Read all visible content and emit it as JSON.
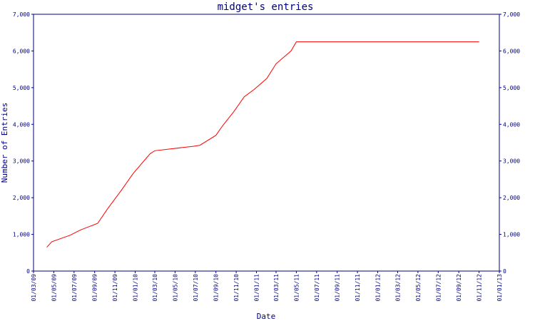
{
  "chart_data": {
    "type": "line",
    "title": "midget's entries",
    "xlabel": "Date",
    "ylabel": "Number of Entries",
    "ylim": [
      0,
      7000
    ],
    "xlim": [
      "2009-03-01",
      "2013-01-01"
    ],
    "grid": false,
    "colors": {
      "frame": "#000080",
      "text": "#000080",
      "series": "#ff0000"
    },
    "y_ticks": [
      {
        "value": 0,
        "label": "0"
      },
      {
        "value": 1000,
        "label": "1,000"
      },
      {
        "value": 2000,
        "label": "2,000"
      },
      {
        "value": 3000,
        "label": "3,000"
      },
      {
        "value": 4000,
        "label": "4,000"
      },
      {
        "value": 5000,
        "label": "5,000"
      },
      {
        "value": 6000,
        "label": "6,000"
      },
      {
        "value": 7000,
        "label": "7,000"
      }
    ],
    "x_ticks": [
      {
        "date": "2009-03-01",
        "label": "01/03/09"
      },
      {
        "date": "2009-05-01",
        "label": "01/05/09"
      },
      {
        "date": "2009-07-01",
        "label": "01/07/09"
      },
      {
        "date": "2009-09-01",
        "label": "01/09/09"
      },
      {
        "date": "2009-11-01",
        "label": "01/11/09"
      },
      {
        "date": "2010-01-01",
        "label": "01/01/10"
      },
      {
        "date": "2010-03-01",
        "label": "01/03/10"
      },
      {
        "date": "2010-05-01",
        "label": "01/05/10"
      },
      {
        "date": "2010-07-01",
        "label": "01/07/10"
      },
      {
        "date": "2010-09-01",
        "label": "01/09/10"
      },
      {
        "date": "2010-11-01",
        "label": "01/11/10"
      },
      {
        "date": "2011-01-01",
        "label": "01/01/11"
      },
      {
        "date": "2011-03-01",
        "label": "01/03/11"
      },
      {
        "date": "2011-05-01",
        "label": "01/05/11"
      },
      {
        "date": "2011-07-01",
        "label": "01/07/11"
      },
      {
        "date": "2011-09-01",
        "label": "01/09/11"
      },
      {
        "date": "2011-11-01",
        "label": "01/11/11"
      },
      {
        "date": "2012-01-01",
        "label": "01/01/12"
      },
      {
        "date": "2012-03-01",
        "label": "01/03/12"
      },
      {
        "date": "2012-05-01",
        "label": "01/05/12"
      },
      {
        "date": "2012-07-01",
        "label": "01/07/12"
      },
      {
        "date": "2012-09-01",
        "label": "01/09/12"
      },
      {
        "date": "2012-11-01",
        "label": "01/11/12"
      },
      {
        "date": "2013-01-01",
        "label": "01/01/13"
      }
    ],
    "series": [
      {
        "points": [
          {
            "x": "2009-04-10",
            "y": 650
          },
          {
            "x": "2009-04-25",
            "y": 800
          },
          {
            "x": "2009-06-20",
            "y": 980
          },
          {
            "x": "2009-07-20",
            "y": 1120
          },
          {
            "x": "2009-09-10",
            "y": 1300
          },
          {
            "x": "2009-10-10",
            "y": 1700
          },
          {
            "x": "2009-11-20",
            "y": 2200
          },
          {
            "x": "2009-12-25",
            "y": 2650
          },
          {
            "x": "2010-02-15",
            "y": 3200
          },
          {
            "x": "2010-03-01",
            "y": 3280
          },
          {
            "x": "2010-06-25",
            "y": 3400
          },
          {
            "x": "2010-07-15",
            "y": 3430
          },
          {
            "x": "2010-09-01",
            "y": 3700
          },
          {
            "x": "2010-09-20",
            "y": 3950
          },
          {
            "x": "2010-10-25",
            "y": 4350
          },
          {
            "x": "2010-11-25",
            "y": 4750
          },
          {
            "x": "2010-12-25",
            "y": 4950
          },
          {
            "x": "2011-02-01",
            "y": 5250
          },
          {
            "x": "2011-03-01",
            "y": 5650
          },
          {
            "x": "2011-04-15",
            "y": 6000
          },
          {
            "x": "2011-05-01",
            "y": 6250
          },
          {
            "x": "2012-11-01",
            "y": 6250
          }
        ]
      }
    ]
  }
}
